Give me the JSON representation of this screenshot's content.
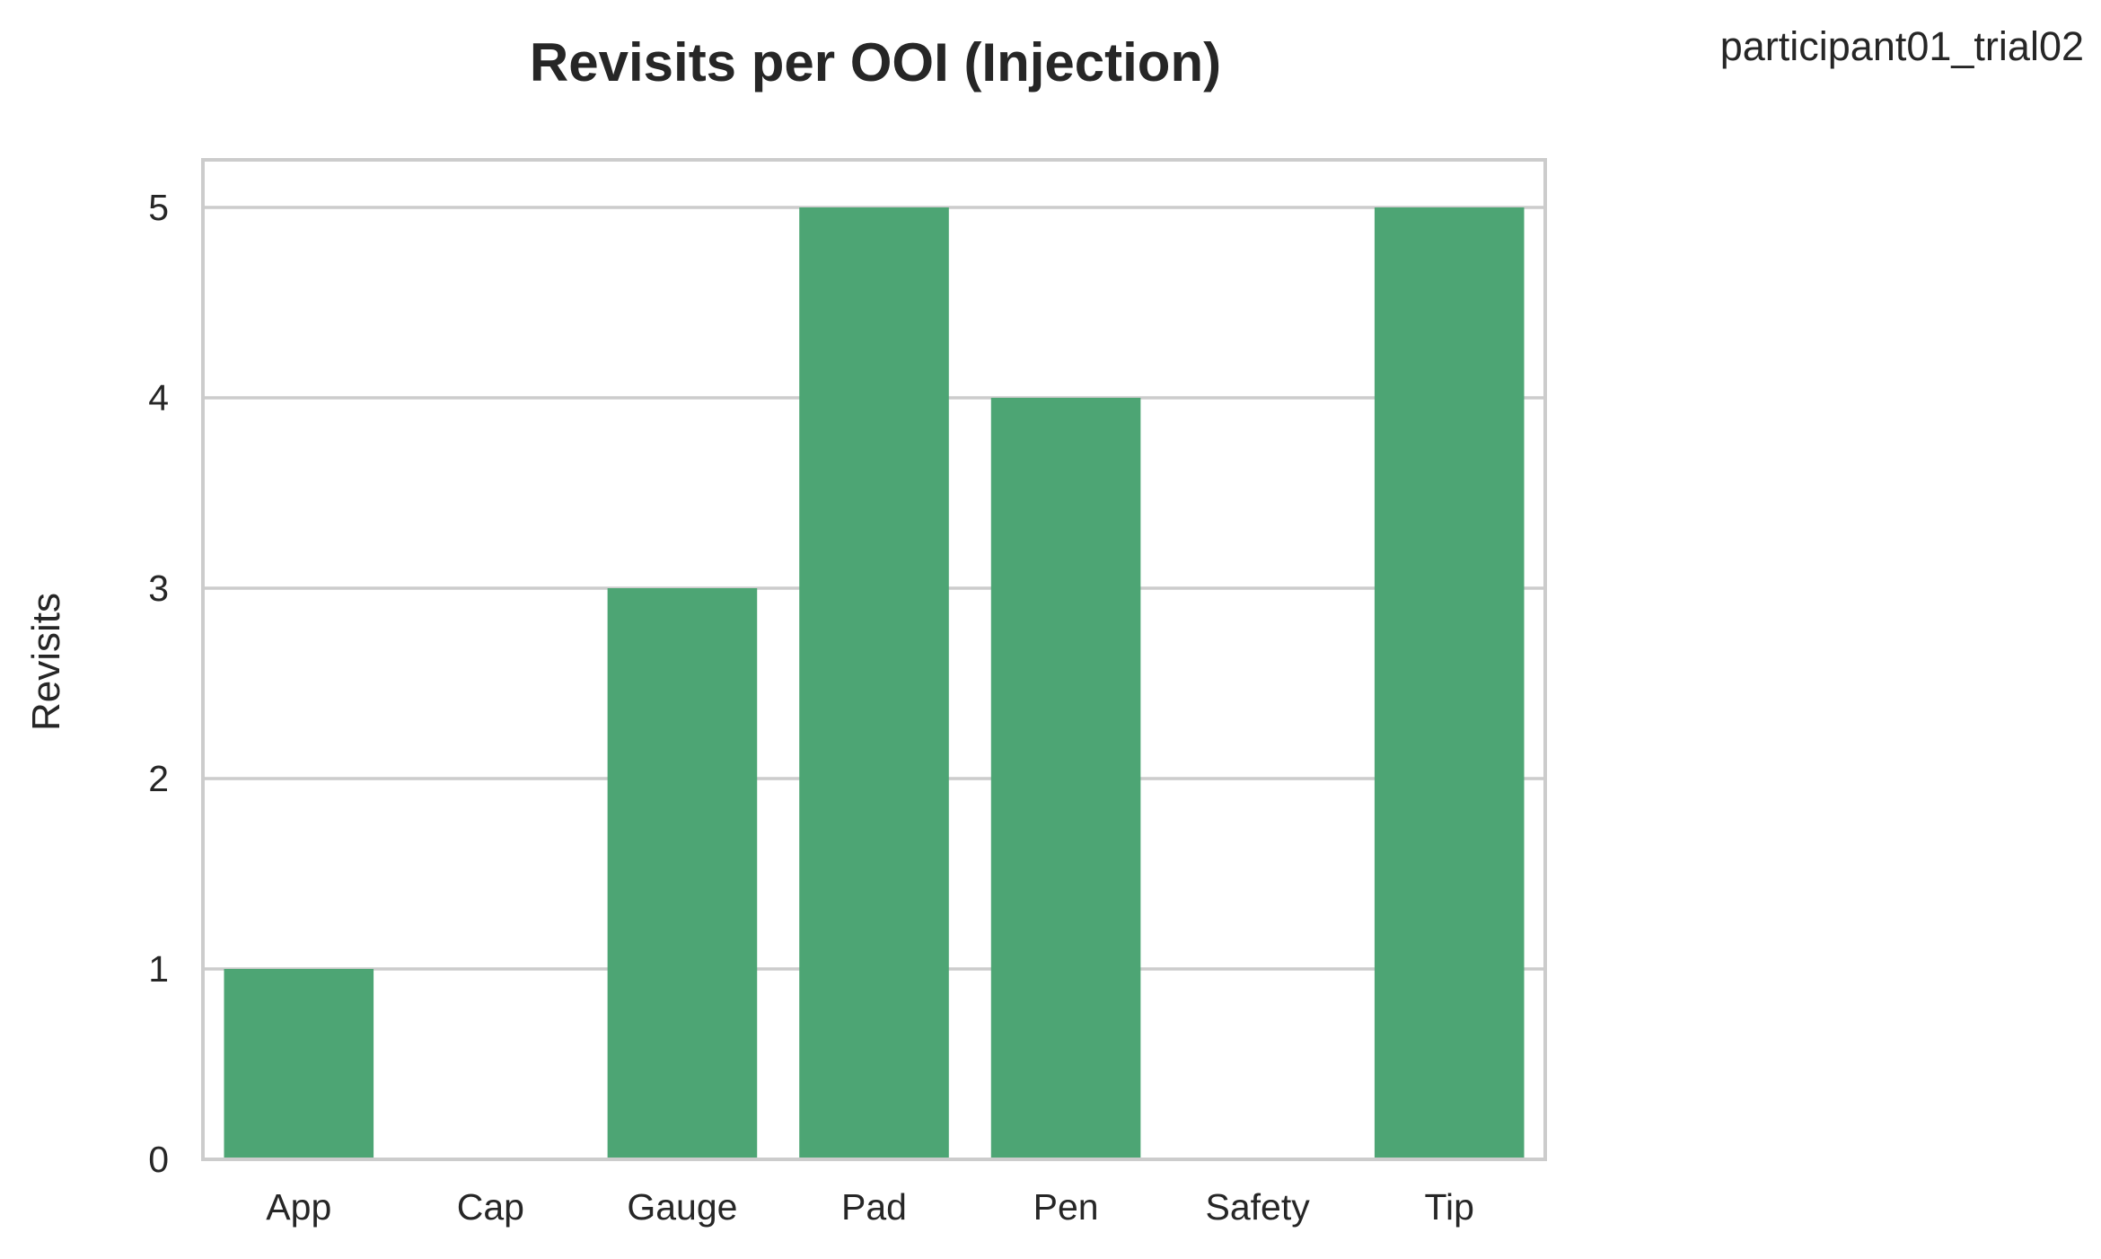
{
  "chart_data": {
    "type": "bar",
    "title": "Revisits per OOI (Injection)",
    "annotation": "participant01_trial02",
    "xlabel": "",
    "ylabel": "Revisits",
    "categories": [
      "App",
      "Cap",
      "Gauge",
      "Pad",
      "Pen",
      "Safety",
      "Tip"
    ],
    "values": [
      1,
      0,
      3,
      5,
      4,
      0,
      5
    ],
    "yticks": [
      "0",
      "1",
      "2",
      "3",
      "4",
      "5"
    ],
    "ylim": [
      0,
      5.25
    ],
    "grid": true,
    "bar_color": "#4da574",
    "grid_color": "#cccccc",
    "frame_color": "#cccccc"
  }
}
